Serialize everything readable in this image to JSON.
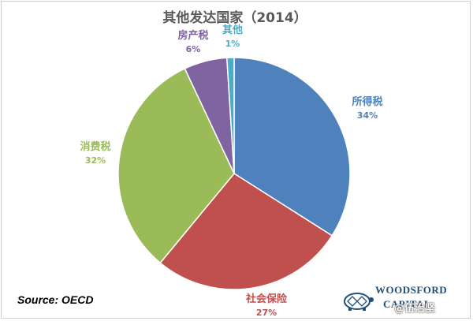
{
  "chart_data": {
    "type": "pie",
    "title": "其他发达国家（2014）",
    "slices": [
      {
        "label": "所得税",
        "value": 34,
        "pct_label": "34%",
        "color": "#4f81bd"
      },
      {
        "label": "社会保险",
        "value": 27,
        "pct_label": "27%",
        "color": "#c0504d"
      },
      {
        "label": "消费税",
        "value": 32,
        "pct_label": "32%",
        "color": "#9bbb59"
      },
      {
        "label": "房产税",
        "value": 6,
        "pct_label": "6%",
        "color": "#8064a2"
      },
      {
        "label": "其他",
        "value": 1,
        "pct_label": "1%",
        "color": "#4bacc6"
      }
    ],
    "legend": "none",
    "data_labels": "outside"
  },
  "source": "Source: OECD",
  "brand": {
    "name": "WOODSFORD",
    "sub": "CAPITAL",
    "icon": "turtle-logo-icon"
  },
  "watermark": "@伍治坚"
}
